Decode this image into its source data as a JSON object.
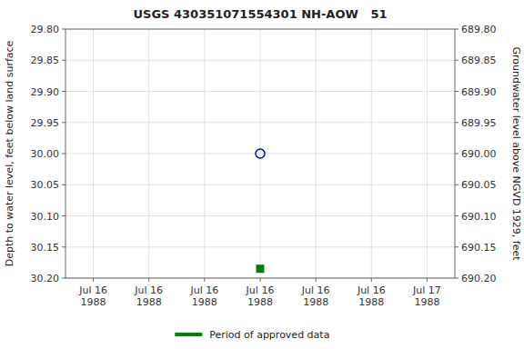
{
  "chart_data": {
    "type": "scatter",
    "title": "USGS 430351071554301 NH-AOW   51",
    "ylabel": "Depth to water level, feet below land surface",
    "y2label": "Groundwater level above NGVD 1929, feet",
    "categories": [
      "Jul 16\n1988",
      "Jul 16\n1988",
      "Jul 16\n1988",
      "Jul 16\n1988",
      "Jul 16\n1988",
      "Jul 16\n1988",
      "Jul 17\n1988"
    ],
    "series": [
      {
        "color": "#0000cc",
        "marker": "circle-open",
        "values": [
          null,
          null,
          null,
          30.0,
          null,
          null,
          null
        ]
      },
      {
        "name": "Period of approved data",
        "color": "#008000",
        "marker": "square",
        "values": [
          null,
          null,
          null,
          30.185,
          null,
          null,
          null
        ]
      }
    ],
    "ylim": [
      30.2,
      29.8
    ],
    "yticks": [
      {
        "value": 29.8,
        "label": "29.80"
      },
      {
        "value": 29.85,
        "label": "29.85"
      },
      {
        "value": 29.9,
        "label": "29.90"
      },
      {
        "value": 29.95,
        "label": "29.95"
      },
      {
        "value": 30.0,
        "label": "30.00"
      },
      {
        "value": 30.05,
        "label": "30.05"
      },
      {
        "value": 30.1,
        "label": "30.10"
      },
      {
        "value": 30.15,
        "label": "30.15"
      },
      {
        "value": 30.2,
        "label": "30.20"
      }
    ],
    "y2lim": [
      690.2,
      689.8
    ],
    "y2ticks": [
      {
        "value": 689.8,
        "label": "689.80"
      },
      {
        "value": 689.85,
        "label": "689.85"
      },
      {
        "value": 689.9,
        "label": "689.90"
      },
      {
        "value": 689.95,
        "label": "689.95"
      },
      {
        "value": 690.0,
        "label": "690.00"
      },
      {
        "value": 690.05,
        "label": "690.05"
      },
      {
        "value": 690.1,
        "label": "690.10"
      },
      {
        "value": 690.15,
        "label": "690.15"
      },
      {
        "value": 690.2,
        "label": "690.20"
      }
    ],
    "grid": true,
    "legend": "bottom"
  }
}
